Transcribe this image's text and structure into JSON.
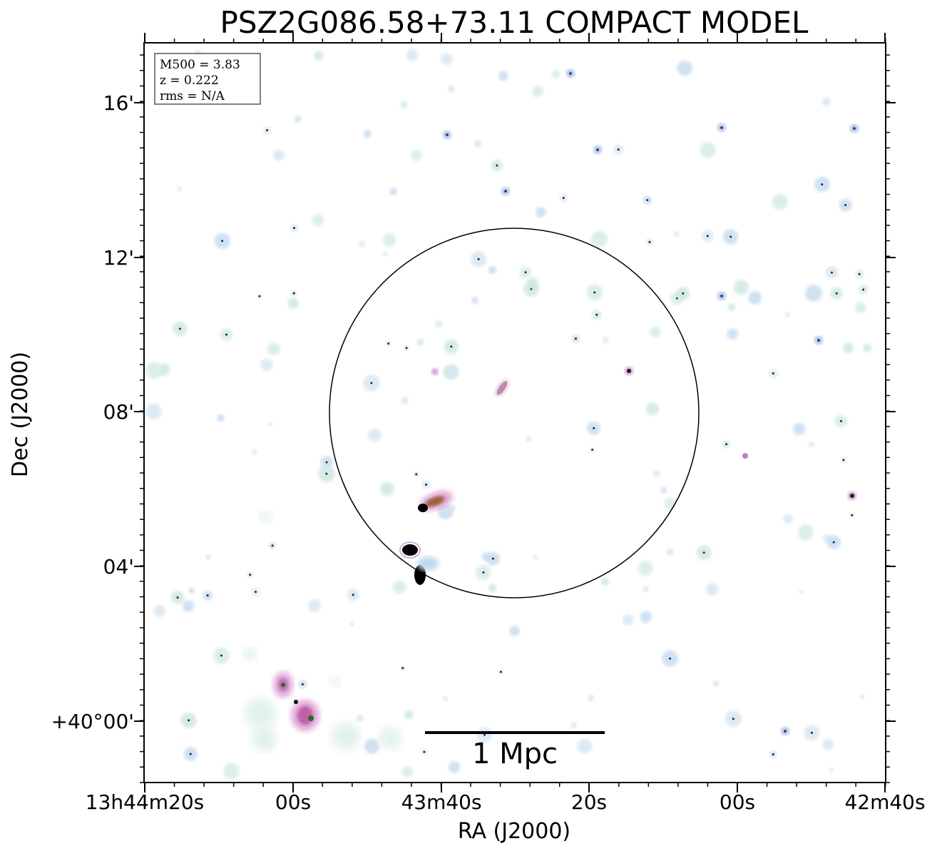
{
  "figure": {
    "title": "PSZ2G086.58+73.11 COMPACT MODEL",
    "xlabel": "RA (J2000)",
    "ylabel": "Dec (J2000)",
    "ra_ticks": [
      "13h44m20s",
      "00s",
      "43m40s",
      "20s",
      "00s",
      "42m40s"
    ],
    "dec_ticks": [
      "16'",
      "12'",
      "08'",
      "04'",
      "+40°00'"
    ],
    "info_box": {
      "line1": "M500 = 3.83",
      "line2": "z = 0.222",
      "line3": "rms = N/A"
    },
    "scalebar": {
      "label": "1 Mpc"
    },
    "colors": {
      "background": "#ffffff",
      "faint_emission": "#cfe8e0",
      "blue_emission": "#8ea6e0",
      "pink_emission": "#d070b8",
      "bright_core": "#000000",
      "circle": "#000000",
      "frame": "#000000"
    }
  }
}
